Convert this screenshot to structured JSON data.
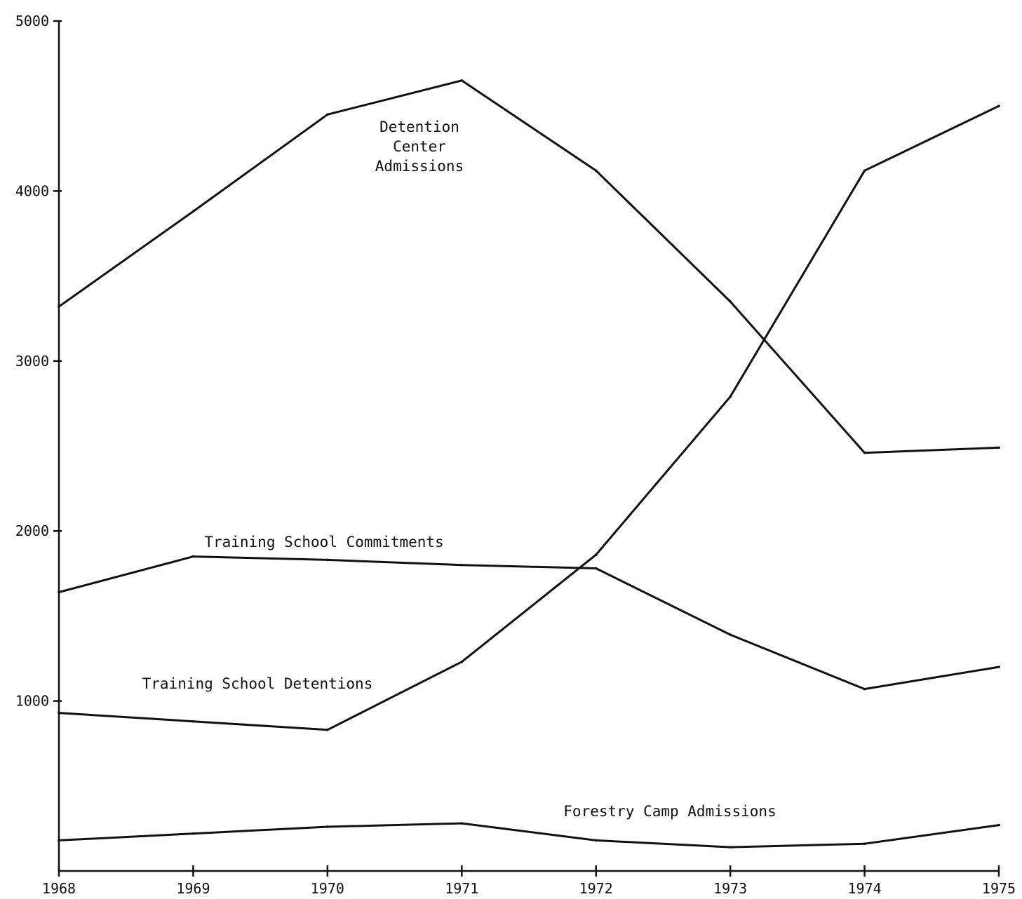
{
  "chart_data": {
    "type": "line",
    "title": "",
    "xlabel": "",
    "ylabel": "",
    "x": [
      1968,
      1969,
      1970,
      1971,
      1972,
      1973,
      1974,
      1975
    ],
    "x_tick_labels": [
      "1968",
      "1969",
      "1970",
      "1971",
      "1972",
      "1973",
      "1974",
      "1975"
    ],
    "y_tick_values": [
      1000,
      2000,
      3000,
      4000,
      5000
    ],
    "y_tick_labels": [
      "1000",
      "2000",
      "3000",
      "4000",
      "5000"
    ],
    "ylim": [
      0,
      5000
    ],
    "grid": false,
    "legend": "none",
    "series": [
      {
        "name": "Detention Center Admissions",
        "label_lines": [
          "Detention",
          "Center",
          "Admissions"
        ],
        "values": [
          3320,
          3880,
          4450,
          4650,
          4120,
          3350,
          2460,
          2490
        ]
      },
      {
        "name": "Training School Commitments",
        "label_lines": [
          "Training School Commitments"
        ],
        "values": [
          1640,
          1850,
          1830,
          1800,
          1780,
          1390,
          1070,
          1200
        ]
      },
      {
        "name": "Training School Detentions",
        "label_lines": [
          "Training School Detentions"
        ],
        "values": [
          930,
          880,
          830,
          1230,
          1860,
          2790,
          4120,
          4500
        ]
      },
      {
        "name": "Forestry Camp Admissions",
        "label_lines": [
          "Forestry Camp Admissions"
        ],
        "values": [
          180,
          220,
          260,
          280,
          180,
          140,
          160,
          270
        ]
      }
    ]
  }
}
